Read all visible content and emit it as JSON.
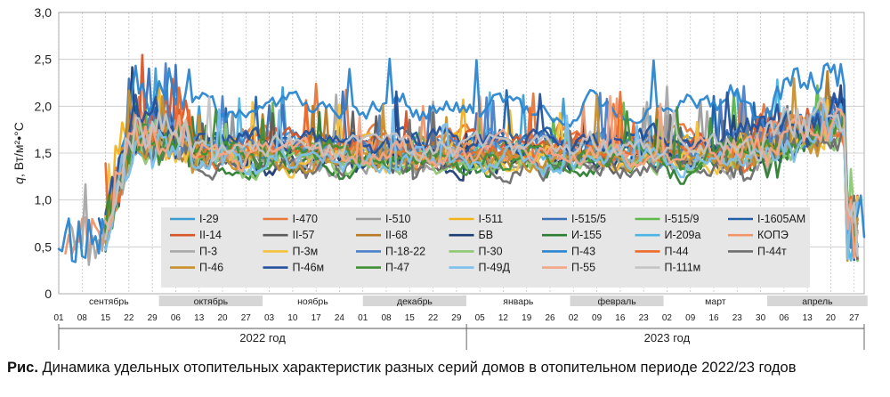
{
  "chart_data": {
    "type": "line",
    "ylabel": "q, Вт/м²•°С",
    "ylabel_italic": "q",
    "ylabel_rest": ", Вт/м²•°С",
    "ylim": [
      0,
      3.0
    ],
    "yticks": [
      "0",
      "0,5",
      "1,0",
      "1,5",
      "2,0",
      "2,5",
      "3,0"
    ],
    "grid": true,
    "x_start": "2022-09-01",
    "x_end": "2023-04-30",
    "months": [
      {
        "label": "сентябрь",
        "start": "2022-09-01",
        "end": "2022-09-30",
        "shade": false
      },
      {
        "label": "октябрь",
        "start": "2022-10-01",
        "end": "2022-10-31",
        "shade": true
      },
      {
        "label": "ноябрь",
        "start": "2022-11-01",
        "end": "2022-11-30",
        "shade": false
      },
      {
        "label": "декабрь",
        "start": "2022-12-01",
        "end": "2022-12-31",
        "shade": true
      },
      {
        "label": "январь",
        "start": "2023-01-01",
        "end": "2023-01-31",
        "shade": false
      },
      {
        "label": "февраль",
        "start": "2023-02-01",
        "end": "2023-02-28",
        "shade": true
      },
      {
        "label": "март",
        "start": "2023-03-01",
        "end": "2023-03-31",
        "shade": false
      },
      {
        "label": "апрель",
        "start": "2023-04-01",
        "end": "2023-04-30",
        "shade": true
      }
    ],
    "xticks": [
      {
        "date": "2022-09-01",
        "label": "01"
      },
      {
        "date": "2022-09-08",
        "label": "08"
      },
      {
        "date": "2022-09-15",
        "label": "15"
      },
      {
        "date": "2022-09-22",
        "label": "22"
      },
      {
        "date": "2022-09-29",
        "label": "29"
      },
      {
        "date": "2022-10-06",
        "label": "06"
      },
      {
        "date": "2022-10-13",
        "label": "13"
      },
      {
        "date": "2022-10-20",
        "label": "20"
      },
      {
        "date": "2022-10-27",
        "label": "27"
      },
      {
        "date": "2022-11-03",
        "label": "03"
      },
      {
        "date": "2022-11-10",
        "label": "10"
      },
      {
        "date": "2022-11-17",
        "label": "17"
      },
      {
        "date": "2022-11-24",
        "label": "24"
      },
      {
        "date": "2022-12-01",
        "label": "01"
      },
      {
        "date": "2022-12-08",
        "label": "08"
      },
      {
        "date": "2022-12-15",
        "label": "15"
      },
      {
        "date": "2022-12-22",
        "label": "22"
      },
      {
        "date": "2022-12-29",
        "label": "29"
      },
      {
        "date": "2023-01-05",
        "label": "05"
      },
      {
        "date": "2023-01-12",
        "label": "12"
      },
      {
        "date": "2023-01-19",
        "label": "19"
      },
      {
        "date": "2023-01-26",
        "label": "26"
      },
      {
        "date": "2023-02-02",
        "label": "02"
      },
      {
        "date": "2023-02-09",
        "label": "09"
      },
      {
        "date": "2023-02-16",
        "label": "16"
      },
      {
        "date": "2023-02-23",
        "label": "23"
      },
      {
        "date": "2023-03-02",
        "label": "02"
      },
      {
        "date": "2023-03-09",
        "label": "09"
      },
      {
        "date": "2023-03-16",
        "label": "16"
      },
      {
        "date": "2023-03-23",
        "label": "23"
      },
      {
        "date": "2023-03-30",
        "label": "30"
      },
      {
        "date": "2023-04-06",
        "label": "06"
      },
      {
        "date": "2023-04-13",
        "label": "13"
      },
      {
        "date": "2023-04-20",
        "label": "20"
      },
      {
        "date": "2023-04-27",
        "label": "27"
      }
    ],
    "years": [
      {
        "label": "2022 год",
        "start": "2022-09-01",
        "end": "2022-12-31"
      },
      {
        "label": "2023 год",
        "start": "2023-01-01",
        "end": "2023-04-30"
      }
    ],
    "series": [
      {
        "name": "I-29",
        "color": "#3a9bd5",
        "level": 1.55,
        "phase": 1.2,
        "start": "2022-09-15",
        "end": "2023-04-28"
      },
      {
        "name": "I-470",
        "color": "#e8773a",
        "level": 1.65,
        "phase": 2.3,
        "start": "2022-09-15",
        "end": "2023-04-23"
      },
      {
        "name": "I-510",
        "color": "#9a9a9a",
        "level": 1.42,
        "phase": 0.7,
        "start": "2022-09-15",
        "end": "2023-04-28"
      },
      {
        "name": "I-511",
        "color": "#f2b21c",
        "level": 1.55,
        "phase": 3.1,
        "start": "2022-09-15",
        "end": "2023-04-25"
      },
      {
        "name": "I-515/5",
        "color": "#3a6fb8",
        "level": 1.58,
        "phase": 4.4,
        "start": "2022-09-15",
        "end": "2023-04-28"
      },
      {
        "name": "I-515/9",
        "color": "#5fb84a",
        "level": 1.5,
        "phase": 5.2,
        "start": "2022-09-15",
        "end": "2023-04-28"
      },
      {
        "name": "I-1605АМ",
        "color": "#1f5fa8",
        "level": 1.62,
        "phase": 0.3,
        "start": "2022-09-13",
        "end": "2023-04-28"
      },
      {
        "name": "II-14",
        "color": "#d9552a",
        "level": 1.6,
        "phase": 1.9,
        "start": "2022-09-15",
        "end": "2023-04-28"
      },
      {
        "name": "II-57",
        "color": "#5b5b5b",
        "level": 1.42,
        "phase": 2.8,
        "start": "2022-09-16",
        "end": "2023-04-28"
      },
      {
        "name": "II-68",
        "color": "#b87a22",
        "level": 1.48,
        "phase": 3.7,
        "start": "2022-09-15",
        "end": "2023-04-28"
      },
      {
        "name": "БВ",
        "color": "#1d3d75",
        "level": 1.4,
        "phase": 4.9,
        "start": "2022-09-15",
        "end": "2023-04-28"
      },
      {
        "name": "И-155",
        "color": "#2e7d32",
        "level": 1.36,
        "phase": 5.8,
        "start": "2022-09-15",
        "end": "2023-04-28"
      },
      {
        "name": "И-209а",
        "color": "#4db4e6",
        "level": 1.52,
        "phase": 0.9,
        "start": "2022-09-15",
        "end": "2023-04-28"
      },
      {
        "name": "КОПЭ",
        "color": "#f0956a",
        "level": 1.5,
        "phase": 1.6,
        "start": "2022-09-03",
        "end": "2023-04-28"
      },
      {
        "name": "П-3",
        "color": "#a8a8a8",
        "level": 1.45,
        "phase": 2.5,
        "start": "2022-09-04",
        "end": "2023-04-28"
      },
      {
        "name": "П-3м",
        "color": "#f5c23c",
        "level": 1.43,
        "phase": 3.4,
        "start": "2022-09-15",
        "end": "2023-04-28"
      },
      {
        "name": "П-18-22",
        "color": "#4a80c8",
        "level": 1.56,
        "phase": 4.1,
        "start": "2022-09-15",
        "end": "2023-04-28"
      },
      {
        "name": "П-30",
        "color": "#8dc873",
        "level": 1.4,
        "phase": 5.5,
        "start": "2022-09-15",
        "end": "2023-04-28"
      },
      {
        "name": "П-43",
        "color": "#2a86d0",
        "level": 1.98,
        "phase": 0.5,
        "start": "2022-09-01",
        "end": "2023-04-30"
      },
      {
        "name": "П-44",
        "color": "#ee6a2a",
        "level": 1.52,
        "phase": 1.4,
        "start": "2022-09-15",
        "end": "2023-04-28"
      },
      {
        "name": "П-44т",
        "color": "#6e6e6e",
        "level": 1.37,
        "phase": 2.1,
        "start": "2022-09-16",
        "end": "2023-04-28"
      },
      {
        "name": "П-46",
        "color": "#c98f2a",
        "level": 1.44,
        "phase": 3.0,
        "start": "2022-09-15",
        "end": "2023-04-28"
      },
      {
        "name": "П-46м",
        "color": "#23519c",
        "level": 1.64,
        "phase": 3.9,
        "start": "2022-09-15",
        "end": "2023-04-27"
      },
      {
        "name": "П-47",
        "color": "#3f8f35",
        "level": 1.46,
        "phase": 4.7,
        "start": "2022-09-15",
        "end": "2023-04-28"
      },
      {
        "name": "П-49Д",
        "color": "#7cc0ee",
        "level": 1.41,
        "phase": 5.6,
        "start": "2022-09-15",
        "end": "2023-04-28"
      },
      {
        "name": "П-55",
        "color": "#f4a585",
        "level": 1.5,
        "phase": 0.1,
        "start": "2022-09-15",
        "end": "2023-04-28"
      },
      {
        "name": "П-111м",
        "color": "#c4c4c4",
        "level": 1.58,
        "phase": 1.1,
        "start": "2022-09-15",
        "end": "2023-04-28"
      }
    ]
  },
  "caption": {
    "bold": "Рис.",
    "text": " Динамика удельных отопительных характеристик разных серий домов в отопительном периоде 2022/23 годов"
  }
}
